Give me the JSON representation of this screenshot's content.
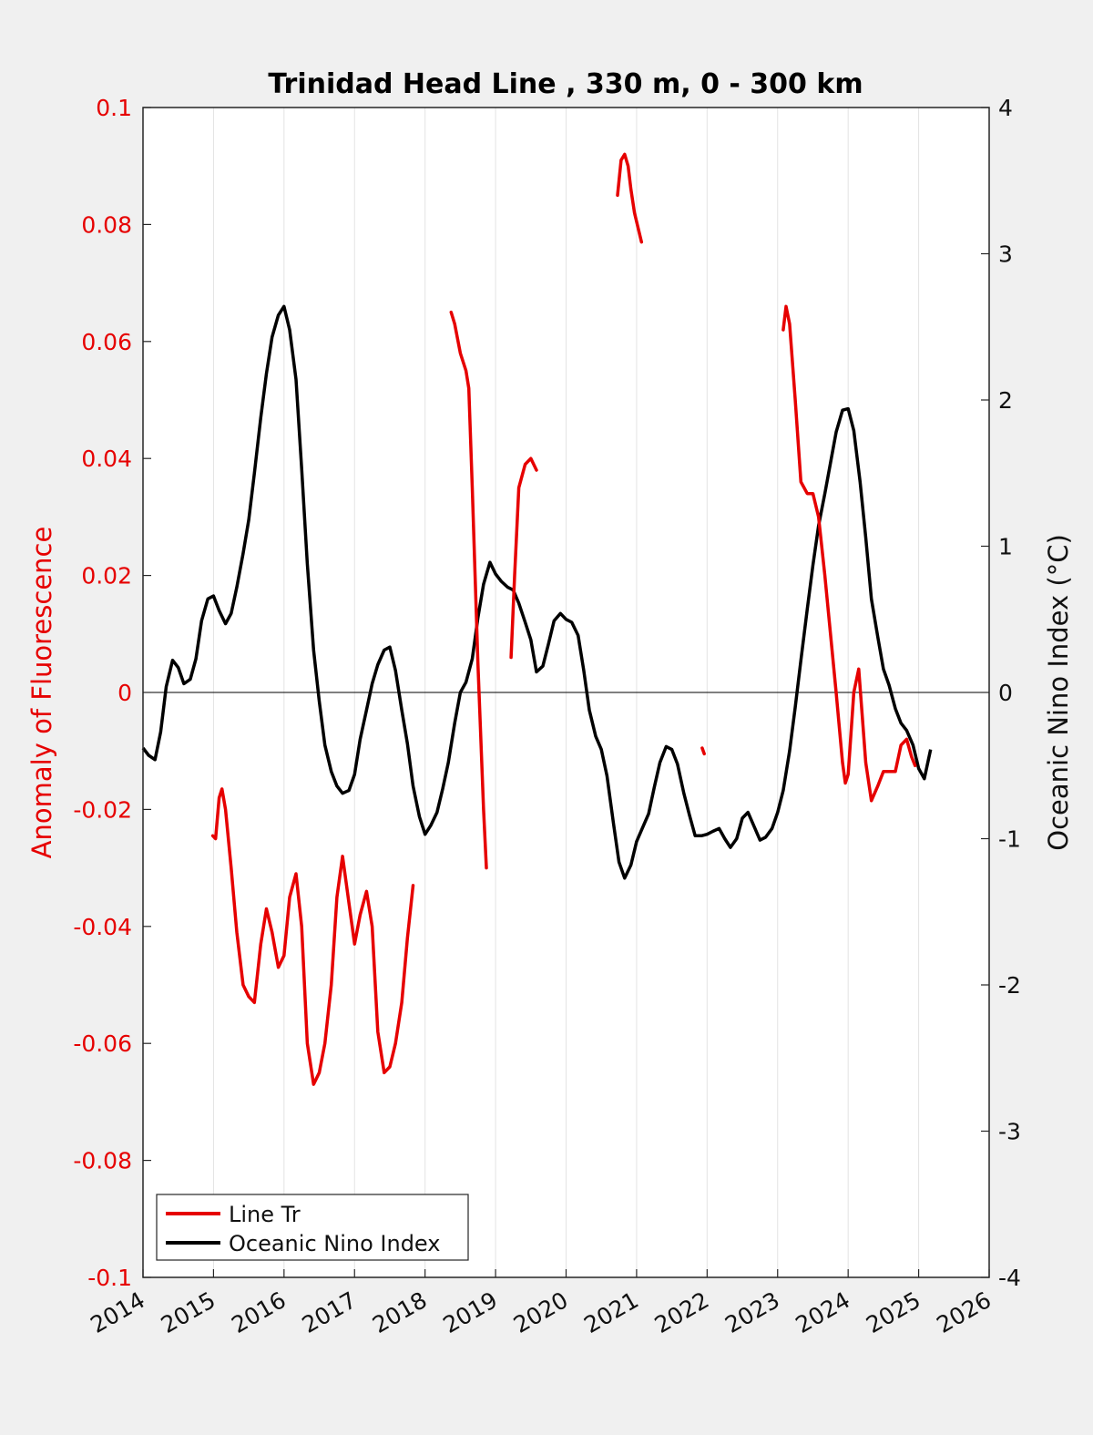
{
  "chart_data": {
    "type": "line",
    "title": "Trinidad Head Line , 330 m, 0 - 300 km",
    "xlabel": "",
    "xlim": [
      2014,
      2026
    ],
    "x_ticks": [
      "2014",
      "2015",
      "2016",
      "2017",
      "2018",
      "2019",
      "2020",
      "2021",
      "2022",
      "2023",
      "2024",
      "2025",
      "2026"
    ],
    "ylabel_left": "Anomaly of Fluorescence",
    "ylim_left": [
      -0.1,
      0.1
    ],
    "y_ticks_left": [
      "0.1",
      "0.08",
      "0.06",
      "0.04",
      "0.02",
      "0",
      "-0.02",
      "-0.04",
      "-0.06",
      "-0.08",
      "-0.1"
    ],
    "ylabel_right": "Oceanic Nino Index (°C)",
    "ylim_right": [
      -4,
      4
    ],
    "y_ticks_right": [
      "4",
      "3",
      "2",
      "1",
      "0",
      "-1",
      "-2",
      "-3",
      "-4"
    ],
    "grid": "x-only",
    "legend_position": "bottom-left",
    "colors": {
      "line_tr": "#e60000",
      "oni": "#000000",
      "left_axis": "#e60000",
      "background": "#f0f0f0",
      "plot_bg": "#ffffff"
    },
    "series": [
      {
        "name": "Line Tr",
        "axis": "left",
        "segments": [
          [
            [
              2014.99,
              -0.0245
            ],
            [
              2015.03,
              -0.025
            ],
            [
              2015.08,
              -0.018
            ],
            [
              2015.12,
              -0.0165
            ],
            [
              2015.17,
              -0.02
            ],
            [
              2015.25,
              -0.03
            ],
            [
              2015.33,
              -0.041
            ],
            [
              2015.42,
              -0.05
            ],
            [
              2015.5,
              -0.052
            ],
            [
              2015.58,
              -0.053
            ],
            [
              2015.67,
              -0.043
            ],
            [
              2015.75,
              -0.037
            ],
            [
              2015.83,
              -0.041
            ],
            [
              2015.92,
              -0.047
            ],
            [
              2016.0,
              -0.045
            ],
            [
              2016.08,
              -0.035
            ],
            [
              2016.17,
              -0.031
            ],
            [
              2016.25,
              -0.04
            ],
            [
              2016.33,
              -0.06
            ],
            [
              2016.42,
              -0.067
            ],
            [
              2016.5,
              -0.065
            ],
            [
              2016.58,
              -0.06
            ],
            [
              2016.67,
              -0.05
            ],
            [
              2016.75,
              -0.035
            ],
            [
              2016.83,
              -0.028
            ],
            [
              2016.92,
              -0.036
            ],
            [
              2017.0,
              -0.043
            ],
            [
              2017.08,
              -0.038
            ],
            [
              2017.17,
              -0.034
            ],
            [
              2017.25,
              -0.04
            ],
            [
              2017.33,
              -0.058
            ],
            [
              2017.42,
              -0.065
            ],
            [
              2017.5,
              -0.064
            ],
            [
              2017.58,
              -0.06
            ],
            [
              2017.67,
              -0.053
            ],
            [
              2017.75,
              -0.042
            ],
            [
              2017.83,
              -0.033
            ]
          ],
          [
            [
              2018.37,
              0.065
            ],
            [
              2018.42,
              0.063
            ],
            [
              2018.5,
              0.058
            ],
            [
              2018.58,
              0.055
            ],
            [
              2018.62,
              0.052
            ],
            [
              2018.67,
              0.035
            ],
            [
              2018.75,
              0.005
            ],
            [
              2018.83,
              -0.02
            ],
            [
              2018.87,
              -0.03
            ]
          ],
          [
            [
              2019.22,
              0.006
            ],
            [
              2019.27,
              0.02
            ],
            [
              2019.33,
              0.035
            ],
            [
              2019.42,
              0.039
            ],
            [
              2019.5,
              0.04
            ],
            [
              2019.58,
              0.038
            ]
          ],
          [
            [
              2020.73,
              0.085
            ],
            [
              2020.78,
              0.091
            ],
            [
              2020.83,
              0.092
            ],
            [
              2020.88,
              0.09
            ],
            [
              2020.92,
              0.086
            ],
            [
              2020.97,
              0.082
            ],
            [
              2021.07,
              0.077
            ]
          ],
          [
            [
              2021.93,
              -0.0095
            ],
            [
              2021.96,
              -0.0105
            ]
          ],
          [
            [
              2023.08,
              0.062
            ],
            [
              2023.12,
              0.066
            ],
            [
              2023.17,
              0.063
            ],
            [
              2023.25,
              0.05
            ],
            [
              2023.33,
              0.036
            ],
            [
              2023.42,
              0.034
            ],
            [
              2023.5,
              0.034
            ],
            [
              2023.58,
              0.03
            ],
            [
              2023.67,
              0.02
            ],
            [
              2023.75,
              0.01
            ],
            [
              2023.83,
              0.0
            ],
            [
              2023.92,
              -0.012
            ],
            [
              2023.96,
              -0.0155
            ],
            [
              2024.0,
              -0.014
            ],
            [
              2024.08,
              0.0
            ],
            [
              2024.15,
              0.004
            ],
            [
              2024.25,
              -0.012
            ],
            [
              2024.33,
              -0.0185
            ],
            [
              2024.42,
              -0.016
            ],
            [
              2024.5,
              -0.0135
            ],
            [
              2024.58,
              -0.0135
            ],
            [
              2024.67,
              -0.0135
            ],
            [
              2024.75,
              -0.009
            ],
            [
              2024.83,
              -0.008
            ],
            [
              2024.9,
              -0.011
            ],
            [
              2024.95,
              -0.0125
            ]
          ]
        ]
      },
      {
        "name": "Oceanic Nino Index",
        "axis": "right",
        "points": [
          [
            2014.0,
            -0.38
          ],
          [
            2014.08,
            -0.43
          ],
          [
            2014.17,
            -0.46
          ],
          [
            2014.25,
            -0.27
          ],
          [
            2014.33,
            0.04
          ],
          [
            2014.42,
            0.22
          ],
          [
            2014.5,
            0.17
          ],
          [
            2014.58,
            0.06
          ],
          [
            2014.67,
            0.09
          ],
          [
            2014.75,
            0.23
          ],
          [
            2014.83,
            0.49
          ],
          [
            2014.92,
            0.64
          ],
          [
            2015.0,
            0.66
          ],
          [
            2015.08,
            0.56
          ],
          [
            2015.17,
            0.47
          ],
          [
            2015.25,
            0.54
          ],
          [
            2015.33,
            0.72
          ],
          [
            2015.42,
            0.95
          ],
          [
            2015.5,
            1.18
          ],
          [
            2015.58,
            1.5
          ],
          [
            2015.67,
            1.88
          ],
          [
            2015.75,
            2.18
          ],
          [
            2015.83,
            2.43
          ],
          [
            2015.92,
            2.58
          ],
          [
            2016.0,
            2.64
          ],
          [
            2016.08,
            2.48
          ],
          [
            2016.17,
            2.14
          ],
          [
            2016.25,
            1.53
          ],
          [
            2016.33,
            0.88
          ],
          [
            2016.42,
            0.29
          ],
          [
            2016.5,
            -0.06
          ],
          [
            2016.58,
            -0.36
          ],
          [
            2016.67,
            -0.54
          ],
          [
            2016.75,
            -0.64
          ],
          [
            2016.83,
            -0.69
          ],
          [
            2016.92,
            -0.67
          ],
          [
            2017.0,
            -0.56
          ],
          [
            2017.08,
            -0.32
          ],
          [
            2017.17,
            -0.12
          ],
          [
            2017.25,
            0.06
          ],
          [
            2017.33,
            0.19
          ],
          [
            2017.42,
            0.29
          ],
          [
            2017.5,
            0.31
          ],
          [
            2017.58,
            0.15
          ],
          [
            2017.67,
            -0.12
          ],
          [
            2017.75,
            -0.35
          ],
          [
            2017.83,
            -0.64
          ],
          [
            2017.92,
            -0.85
          ],
          [
            2018.0,
            -0.97
          ],
          [
            2018.08,
            -0.91
          ],
          [
            2018.17,
            -0.82
          ],
          [
            2018.25,
            -0.66
          ],
          [
            2018.33,
            -0.48
          ],
          [
            2018.42,
            -0.21
          ],
          [
            2018.5,
            0.0
          ],
          [
            2018.58,
            0.07
          ],
          [
            2018.67,
            0.23
          ],
          [
            2018.75,
            0.51
          ],
          [
            2018.83,
            0.74
          ],
          [
            2018.92,
            0.89
          ],
          [
            2019.0,
            0.81
          ],
          [
            2019.08,
            0.76
          ],
          [
            2019.17,
            0.72
          ],
          [
            2019.25,
            0.7
          ],
          [
            2019.33,
            0.61
          ],
          [
            2019.42,
            0.48
          ],
          [
            2019.5,
            0.36
          ],
          [
            2019.58,
            0.14
          ],
          [
            2019.67,
            0.18
          ],
          [
            2019.75,
            0.33
          ],
          [
            2019.83,
            0.49
          ],
          [
            2019.92,
            0.54
          ],
          [
            2020.0,
            0.5
          ],
          [
            2020.08,
            0.48
          ],
          [
            2020.17,
            0.39
          ],
          [
            2020.25,
            0.15
          ],
          [
            2020.33,
            -0.12
          ],
          [
            2020.42,
            -0.3
          ],
          [
            2020.5,
            -0.39
          ],
          [
            2020.58,
            -0.57
          ],
          [
            2020.67,
            -0.89
          ],
          [
            2020.75,
            -1.16
          ],
          [
            2020.83,
            -1.27
          ],
          [
            2020.92,
            -1.18
          ],
          [
            2021.0,
            -1.02
          ],
          [
            2021.08,
            -0.93
          ],
          [
            2021.17,
            -0.83
          ],
          [
            2021.25,
            -0.65
          ],
          [
            2021.33,
            -0.48
          ],
          [
            2021.42,
            -0.37
          ],
          [
            2021.5,
            -0.39
          ],
          [
            2021.58,
            -0.49
          ],
          [
            2021.67,
            -0.69
          ],
          [
            2021.75,
            -0.84
          ],
          [
            2021.83,
            -0.98
          ],
          [
            2021.92,
            -0.98
          ],
          [
            2022.0,
            -0.97
          ],
          [
            2022.08,
            -0.95
          ],
          [
            2022.17,
            -0.93
          ],
          [
            2022.25,
            -1.0
          ],
          [
            2022.33,
            -1.06
          ],
          [
            2022.42,
            -1.0
          ],
          [
            2022.5,
            -0.86
          ],
          [
            2022.58,
            -0.82
          ],
          [
            2022.67,
            -0.92
          ],
          [
            2022.75,
            -1.01
          ],
          [
            2022.83,
            -0.99
          ],
          [
            2022.92,
            -0.93
          ],
          [
            2023.0,
            -0.82
          ],
          [
            2023.08,
            -0.67
          ],
          [
            2023.17,
            -0.4
          ],
          [
            2023.25,
            -0.1
          ],
          [
            2023.33,
            0.22
          ],
          [
            2023.42,
            0.57
          ],
          [
            2023.5,
            0.87
          ],
          [
            2023.58,
            1.14
          ],
          [
            2023.67,
            1.36
          ],
          [
            2023.75,
            1.57
          ],
          [
            2023.83,
            1.78
          ],
          [
            2023.92,
            1.93
          ],
          [
            2024.0,
            1.94
          ],
          [
            2024.08,
            1.79
          ],
          [
            2024.17,
            1.44
          ],
          [
            2024.25,
            1.06
          ],
          [
            2024.33,
            0.64
          ],
          [
            2024.42,
            0.38
          ],
          [
            2024.5,
            0.16
          ],
          [
            2024.58,
            0.05
          ],
          [
            2024.67,
            -0.11
          ],
          [
            2024.75,
            -0.21
          ],
          [
            2024.83,
            -0.26
          ],
          [
            2024.92,
            -0.36
          ],
          [
            2025.0,
            -0.52
          ],
          [
            2025.08,
            -0.59
          ],
          [
            2025.17,
            -0.39
          ]
        ]
      }
    ]
  }
}
